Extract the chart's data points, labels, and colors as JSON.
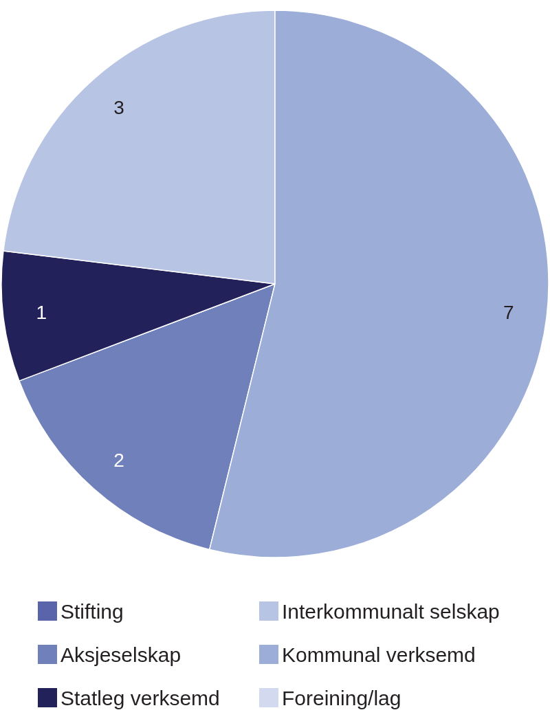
{
  "chart_data": {
    "type": "pie",
    "categories": [
      "Stifting",
      "Aksjeselskap",
      "Statleg verksemd",
      "Interkommunalt selskap",
      "Kommunal verksemd",
      "Foreining/lag"
    ],
    "values": [
      0,
      2,
      1,
      3,
      7,
      0
    ],
    "colors": [
      "#5a64ab",
      "#6f80bb",
      "#23215a",
      "#b8c4e4",
      "#9caed8",
      "#d3daef"
    ],
    "value_labels": [
      null,
      "2",
      "1",
      "3",
      "7",
      null
    ],
    "legend": "bottom"
  }
}
